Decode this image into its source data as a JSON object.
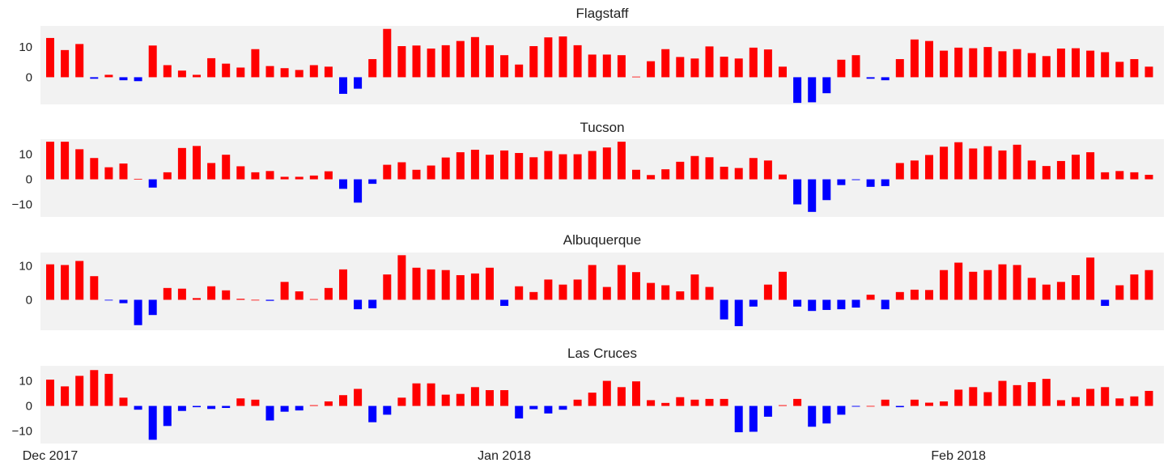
{
  "chart_data": [
    {
      "type": "bar",
      "title": "Flagstaff",
      "yticks": [
        0,
        10
      ],
      "ylim": [
        -9,
        17
      ],
      "x_tick_labels": [
        "Dec 2017",
        "Jan 2018",
        "Feb 2018"
      ],
      "x_tick_days": [
        0,
        31,
        62
      ],
      "colors": {
        "positive": "#ff0000",
        "negative": "#0000ff"
      },
      "values": [
        13,
        9,
        11,
        -0.5,
        0.8,
        -1,
        -1.3,
        10.5,
        4,
        2.2,
        0.8,
        6.3,
        4.5,
        3.2,
        9.3,
        3.7,
        3,
        2.4,
        4,
        3.5,
        -5.5,
        -3.8,
        6,
        16,
        10.3,
        10.5,
        9.5,
        10.6,
        12,
        13.3,
        10.6,
        7.3,
        4.2,
        10.3,
        13.2,
        13.5,
        10.6,
        7.5,
        7.5,
        7.3,
        0.2,
        5.3,
        9.3,
        6.7,
        6.2,
        10.2,
        6.8,
        6.2,
        9.8,
        9.2,
        3.5,
        -8.5,
        -8.3,
        -5.3,
        5.8,
        7.3,
        -0.5,
        -1,
        6,
        12.5,
        12,
        8.8,
        9.8,
        9.6,
        10,
        8.6,
        9.3,
        8,
        7,
        9.5,
        9.6,
        8.8,
        8.3,
        5.1,
        6,
        3.5
      ]
    },
    {
      "type": "bar",
      "title": "Tucson",
      "yticks": [
        -10,
        0,
        10
      ],
      "ylim": [
        -15,
        16
      ],
      "x_tick_labels": [
        "Dec 2017",
        "Jan 2018",
        "Feb 2018"
      ],
      "x_tick_days": [
        0,
        31,
        62
      ],
      "colors": {
        "positive": "#ff0000",
        "negative": "#0000ff"
      },
      "values": [
        15,
        15,
        12,
        8.5,
        4.8,
        6.3,
        0.2,
        -3.3,
        2.8,
        12.5,
        13.3,
        6.5,
        9.8,
        5.2,
        2.8,
        3.3,
        1,
        1,
        1.5,
        3.2,
        -3.8,
        -9.3,
        -1.8,
        5.8,
        6.8,
        3.8,
        5.5,
        8.7,
        10.8,
        11.8,
        9.8,
        11.5,
        10.5,
        8.8,
        11.3,
        10,
        10,
        11.3,
        12.7,
        15,
        3.8,
        1.7,
        4,
        7,
        9.3,
        8.8,
        5,
        4.5,
        8.5,
        7.5,
        1.9,
        -10,
        -13,
        -8.3,
        -2.3,
        -0.3,
        -3,
        -2.7,
        6.5,
        7.5,
        9.7,
        13,
        14.8,
        12.3,
        13.2,
        11.5,
        13.8,
        7.5,
        5.3,
        7.3,
        9.8,
        10.8,
        2.8,
        3.3,
        2.8,
        1.8
      ]
    },
    {
      "type": "bar",
      "title": "Albuquerque",
      "yticks": [
        0,
        10
      ],
      "ylim": [
        -9,
        14
      ],
      "x_tick_labels": [
        "Dec 2017",
        "Jan 2018",
        "Feb 2018"
      ],
      "x_tick_days": [
        0,
        31,
        62
      ],
      "colors": {
        "positive": "#ff0000",
        "negative": "#0000ff"
      },
      "values": [
        10.5,
        10.3,
        11.5,
        7,
        -0.2,
        -1,
        -7.5,
        -4.5,
        3.5,
        3.3,
        0.5,
        4,
        2.8,
        0.3,
        0,
        -0.3,
        5.3,
        2.5,
        0.2,
        3.5,
        9,
        -2.8,
        -2.5,
        7.5,
        13.2,
        9.5,
        9,
        8.8,
        7.3,
        7.8,
        9.5,
        -1.8,
        4,
        2.3,
        6,
        4.5,
        6,
        10.3,
        3.8,
        10.3,
        8.2,
        5,
        4.3,
        2.5,
        7.5,
        3.8,
        -5.8,
        -7.8,
        -2,
        4.5,
        8.3,
        -2,
        -3.3,
        -3,
        -2.8,
        -2.3,
        1.5,
        -2.8,
        2.3,
        3,
        2.9,
        8.8,
        11,
        8.3,
        8.8,
        10.5,
        10.3,
        6.5,
        4.5,
        5.3,
        7.3,
        12.5,
        -1.8,
        4.3,
        7.5,
        8.8
      ]
    },
    {
      "type": "bar",
      "title": "Las Cruces",
      "yticks": [
        -10,
        0,
        10
      ],
      "ylim": [
        -15,
        16
      ],
      "x_tick_labels": [
        "Dec 2017",
        "Jan 2018",
        "Feb 2018"
      ],
      "x_tick_days": [
        0,
        31,
        62
      ],
      "colors": {
        "positive": "#ff0000",
        "negative": "#0000ff"
      },
      "values": [
        10.5,
        7.8,
        12,
        14.3,
        12.8,
        3.3,
        -1.5,
        -13.5,
        -8,
        -2,
        -0.5,
        -1.2,
        -0.8,
        3,
        2.5,
        -5.8,
        -2.3,
        -1.8,
        0.3,
        1.8,
        4.3,
        6.8,
        -6.5,
        -3.5,
        3.3,
        9,
        9,
        4.5,
        4.8,
        7.5,
        6.3,
        6.3,
        -5,
        -1.3,
        -3,
        -1.5,
        2.5,
        5.3,
        10,
        7.5,
        9.8,
        2.3,
        1.2,
        3.5,
        2.5,
        2.8,
        2.8,
        -10.5,
        -10.3,
        -4.3,
        0.3,
        2.8,
        -8.3,
        -7,
        -3.5,
        -0.3,
        0,
        2.5,
        -0.5,
        2.5,
        1.3,
        1.8,
        6.5,
        7.5,
        5.5,
        10,
        8.3,
        9.5,
        10.8,
        2.3,
        3.5,
        6.8,
        7.5,
        3,
        3.8,
        6
      ]
    }
  ]
}
